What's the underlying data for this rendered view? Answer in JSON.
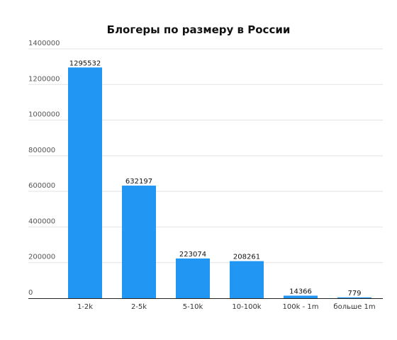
{
  "chart_data": {
    "type": "bar",
    "title": "Блогеры по размеру в России",
    "categories": [
      "1-2k",
      "2-5k",
      "5-10k",
      "10-100k",
      "100k - 1m",
      "больше 1m"
    ],
    "values": [
      1295532,
      632197,
      223074,
      208261,
      14366,
      779
    ],
    "data_labels": [
      "1295532",
      "632197",
      "223074",
      "208261",
      "14366",
      "779"
    ],
    "y_ticks": [
      0,
      200000,
      400000,
      600000,
      800000,
      1000000,
      1200000,
      1400000
    ],
    "y_tick_labels": [
      "0",
      "200000",
      "400000",
      "600000",
      "800000",
      "1000000",
      "1200000",
      "1400000"
    ],
    "ylim": [
      0,
      1400000
    ],
    "grid": true,
    "legend": "none",
    "bar_color": "#2196f3",
    "grid_color": "#e3e3e3"
  }
}
